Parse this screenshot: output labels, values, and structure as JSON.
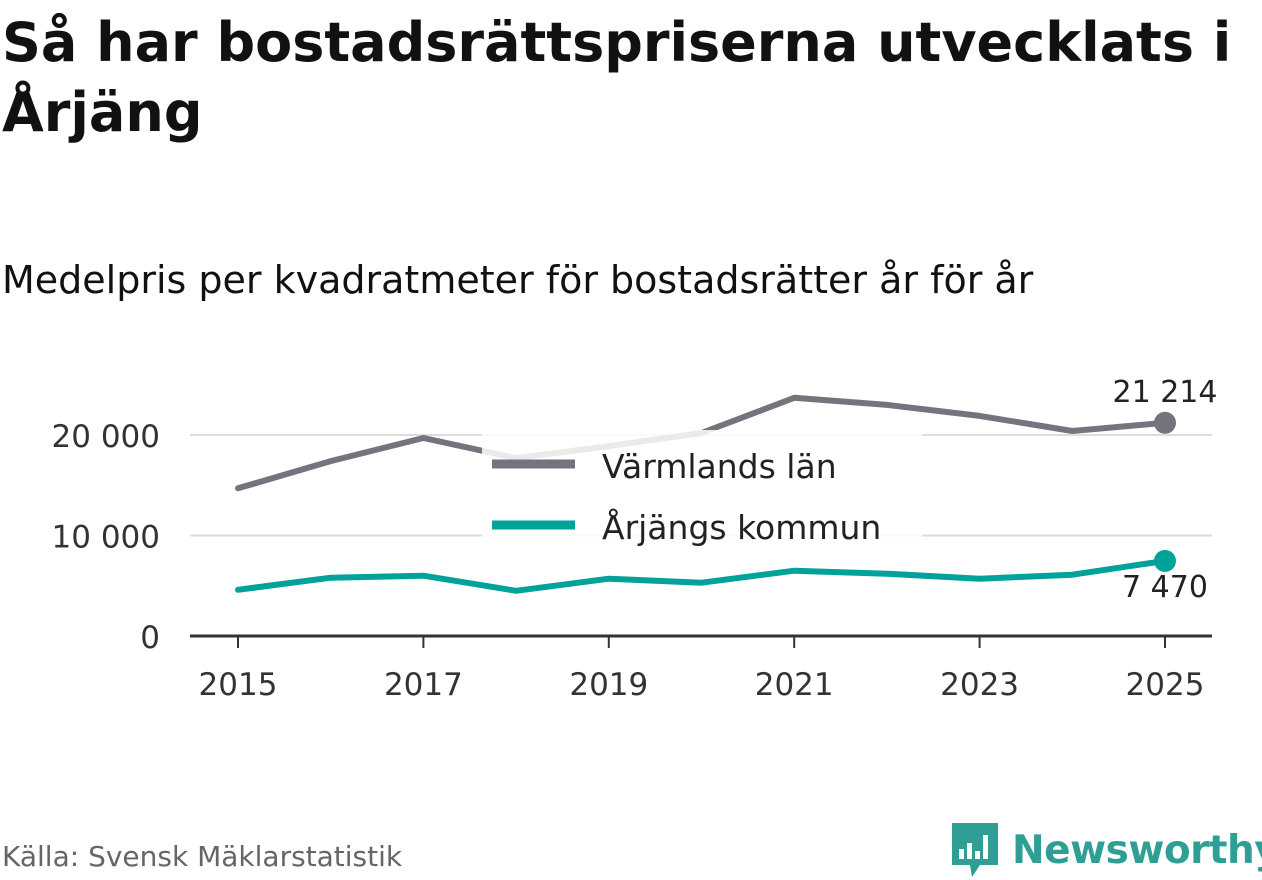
{
  "title": "Så har bostadsrättspriserna utvecklats i Årjäng",
  "subtitle": "Medelpris per kvadratmeter för bostadsrätter år för år",
  "source": "Källa: Svensk Mäklarstatistik",
  "brand": "Newsworthy",
  "colors": {
    "varmland": "#75747c",
    "arjang": "#00a29a",
    "grid": "#dddddd",
    "axis": "#333333",
    "brand": "#2f9f95"
  },
  "chart_data": {
    "type": "line",
    "x": [
      2015,
      2016,
      2017,
      2018,
      2019,
      2020,
      2021,
      2022,
      2023,
      2024,
      2025
    ],
    "x_ticks": [
      "2015",
      "2017",
      "2019",
      "2021",
      "2023",
      "2025"
    ],
    "y_ticks": [
      "0",
      "10 000",
      "20 000"
    ],
    "ylim": [
      0,
      23000
    ],
    "grid": true,
    "legend_position": "center",
    "series": [
      {
        "name": "Värmlands län",
        "color": "#75747c",
        "values": [
          14700,
          17400,
          19700,
          17700,
          18900,
          20200,
          23700,
          23000,
          21900,
          20400,
          21214
        ],
        "end_label": "21 214"
      },
      {
        "name": "Årjängs kommun",
        "color": "#00a29a",
        "values": [
          4600,
          5800,
          6000,
          4500,
          5700,
          5300,
          6500,
          6200,
          5700,
          6100,
          7470
        ],
        "end_label": "7 470"
      }
    ]
  }
}
